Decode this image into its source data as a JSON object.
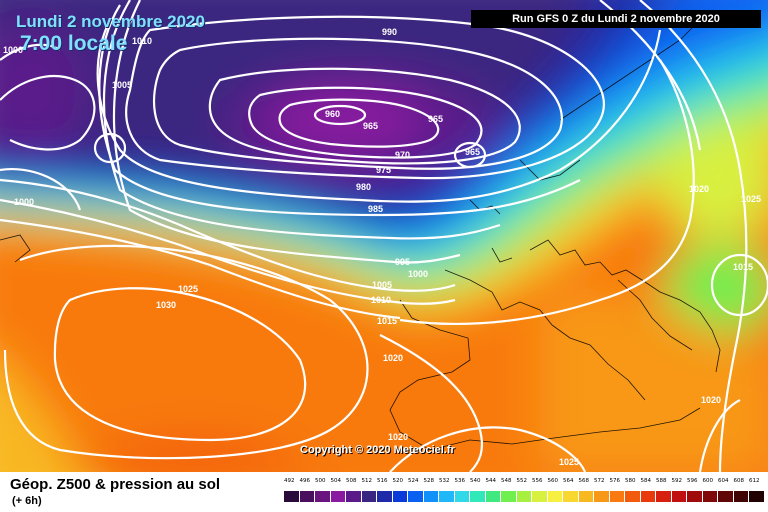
{
  "header": {
    "date": "Lundi 2 novembre 2020",
    "time": "7:00 locale",
    "run": "Run GFS 0 Z du Lundi 2 novembre 2020"
  },
  "map": {
    "copyright": "Copyright © 2020 Meteociel.fr",
    "isobar_labels": [
      "1000",
      "1010",
      "1005",
      "990",
      "960",
      "965",
      "965",
      "970",
      "975",
      "965",
      "980",
      "985",
      "1000",
      "995",
      "1000",
      "1005",
      "1010",
      "1015",
      "1025",
      "1030",
      "1020",
      "1020",
      "1020",
      "1025",
      "1025",
      "1015",
      "1020"
    ],
    "colors": {
      "low_core": "#8a1aa0",
      "trough": "#3a2580",
      "ridge_high": "#f22a0e"
    }
  },
  "footer": {
    "title": "Géop. Z500 & pression au sol",
    "subtitle": "(+ 6h)",
    "legend_values": [
      "492",
      "496",
      "500",
      "504",
      "508",
      "512",
      "516",
      "520",
      "524",
      "528",
      "532",
      "536",
      "540",
      "544",
      "548",
      "552",
      "556",
      "560",
      "564",
      "568",
      "572",
      "576",
      "580",
      "584",
      "588",
      "592",
      "596",
      "600",
      "604",
      "608",
      "612"
    ],
    "legend_colors": [
      "#2a0a3a",
      "#4a0e5e",
      "#6a1480",
      "#8a1aa0",
      "#5a1a8a",
      "#3a2580",
      "#1e2aa8",
      "#0a3ad8",
      "#0a60f0",
      "#1090f8",
      "#20b8f8",
      "#30d8e8",
      "#30e8b8",
      "#40e880",
      "#70ef50",
      "#a8f040",
      "#d8f040",
      "#f8f040",
      "#f8d830",
      "#f8b820",
      "#f89818",
      "#f87a10",
      "#f25a0e",
      "#e83a0c",
      "#d82010",
      "#c01010",
      "#a00a0a",
      "#800808",
      "#600606",
      "#400404",
      "#200202"
    ]
  }
}
